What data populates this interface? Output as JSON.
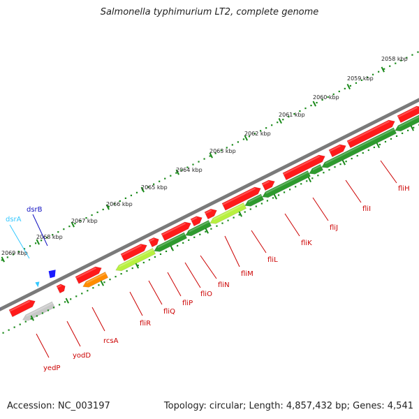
{
  "title": "Salmonella typhimurium LT2, complete genome",
  "footer": {
    "accession": "Accession: NC_003197",
    "topology": "Topology: circular; Length: 4,857,432 bp; Genes: 4,541"
  },
  "colors": {
    "forward": "#ff1a1a",
    "reverse": "#2e9a2e",
    "reverse_light": "#b8f040",
    "backbone": "#7a7a7a",
    "tick": "#1a8a1a",
    "label": "#cc0000",
    "dsr": "#1a1aff",
    "dsrA": "#33c8ff",
    "rcsA": "#ff8c00",
    "pseudo": "#c8c8c8"
  },
  "scale": {
    "ticks": [
      {
        "label": "2058 kbp"
      },
      {
        "label": "2059 kbp"
      },
      {
        "label": "2060 kbp"
      },
      {
        "label": "2061 kbp"
      },
      {
        "label": "2062 kbp"
      },
      {
        "label": "2063 kbp"
      },
      {
        "label": "2064 kbp"
      },
      {
        "label": "2065 kbp"
      },
      {
        "label": "2066 kbp"
      },
      {
        "label": "2067 kbp"
      },
      {
        "label": "2068 kbp"
      },
      {
        "label": "2069 kbp"
      }
    ]
  },
  "genes": [
    {
      "name": "fliH",
      "strand": "reverse"
    },
    {
      "name": "fliI",
      "strand": "reverse"
    },
    {
      "name": "fliJ",
      "strand": "reverse"
    },
    {
      "name": "fliK",
      "strand": "reverse"
    },
    {
      "name": "fliL",
      "strand": "reverse"
    },
    {
      "name": "fliM",
      "strand": "reverse"
    },
    {
      "name": "fliN",
      "strand": "reverse"
    },
    {
      "name": "fliO",
      "strand": "reverse"
    },
    {
      "name": "fliP",
      "strand": "reverse"
    },
    {
      "name": "fliQ",
      "strand": "reverse"
    },
    {
      "name": "fliR",
      "strand": "reverse"
    },
    {
      "name": "rcsA",
      "strand": "reverse"
    },
    {
      "name": "yodD",
      "strand": "forward"
    },
    {
      "name": "yedP",
      "strand": "forward"
    },
    {
      "name": "dsrB",
      "strand": "forward"
    },
    {
      "name": "dsrA",
      "strand": "forward"
    }
  ]
}
